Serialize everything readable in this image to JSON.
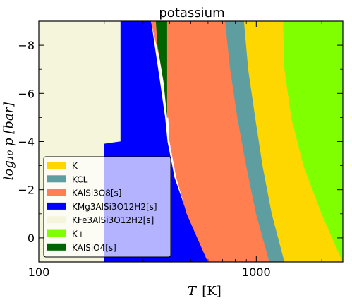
{
  "chart_data": {
    "type": "area",
    "title": "potassium",
    "xlabel": "T [K]",
    "ylabel": "log10 p [bar]",
    "x_scale": "log",
    "xlim": [
      100,
      2500
    ],
    "ylim": [
      -9,
      1
    ],
    "y_inverted": true,
    "x_ticks": [
      100,
      1000
    ],
    "x_tick_labels": [
      "100",
      "1000"
    ],
    "y_ticks": [
      -8,
      -6,
      -4,
      -2,
      0
    ],
    "y_tick_labels": [
      "−8",
      "−6",
      "−4",
      "−2",
      "0"
    ],
    "legend": {
      "position": "lower-left",
      "entries": [
        {
          "label": "K",
          "color": "#FFD700"
        },
        {
          "label": "KCL",
          "color": "#5F9EA0"
        },
        {
          "label": "KAlSi3O8[s]",
          "color": "#FF7F50"
        },
        {
          "label": "KMg3AlSi3O12H2[s]",
          "color": "#0000FF"
        },
        {
          "label": "KFe3AlSi3O12H2[s]",
          "color": "#F5F5DC"
        },
        {
          "label": "K+",
          "color": "#7FFF00"
        },
        {
          "label": "KAlSiO4[s]",
          "color": "#006400"
        }
      ]
    },
    "regions": [
      {
        "name": "KFe3AlSi3O12H2[s]",
        "color": "#F5F5DC",
        "points": [
          [
            100,
            -9
          ],
          [
            238,
            -9
          ],
          [
            238,
            -4
          ],
          [
            200,
            -3.9
          ],
          [
            200,
            1
          ],
          [
            100,
            1
          ]
        ]
      },
      {
        "name": "KMg3AlSi3O12H2[s]",
        "color": "#0000FF",
        "points": [
          [
            238,
            -9
          ],
          [
            328,
            -9
          ],
          [
            340,
            -8
          ],
          [
            360,
            -6.5
          ],
          [
            380,
            -5
          ],
          [
            390,
            -4
          ],
          [
            420,
            -2.5
          ],
          [
            480,
            -1
          ],
          [
            600,
            1
          ],
          [
            200,
            1
          ],
          [
            200,
            -3.9
          ],
          [
            238,
            -4
          ]
        ]
      },
      {
        "name": "KAlSi3O8[s]",
        "color": "#FF7F50",
        "points": [
          [
            328,
            -9
          ],
          [
            346,
            -9
          ],
          [
            352,
            -8
          ],
          [
            375,
            -6.5
          ],
          [
            395,
            -5
          ],
          [
            400,
            -4
          ],
          [
            430,
            -2.5
          ],
          [
            480,
            -1
          ],
          [
            600,
            1
          ]
        ]
      },
      {
        "name": "KAlSiO4[s]",
        "color": "#006400",
        "points": [
          [
            346,
            -9
          ],
          [
            390,
            -9
          ],
          [
            390,
            -5
          ],
          [
            375,
            -6.5
          ],
          [
            352,
            -8
          ]
        ]
      },
      {
        "name": "KAlSi3O8[s]",
        "color": "#FF7F50",
        "points": [
          [
            390,
            -9
          ],
          [
            720,
            -9
          ],
          [
            760,
            -7
          ],
          [
            820,
            -5
          ],
          [
            900,
            -3
          ],
          [
            1000,
            -1
          ],
          [
            1150,
            1
          ],
          [
            600,
            1
          ],
          [
            480,
            -1
          ],
          [
            430,
            -2.5
          ],
          [
            400,
            -4
          ],
          [
            395,
            -5
          ],
          [
            390,
            -5
          ]
        ]
      },
      {
        "name": "KCL",
        "color": "#5F9EA0",
        "points": [
          [
            720,
            -9
          ],
          [
            880,
            -9
          ],
          [
            920,
            -7
          ],
          [
            990,
            -5
          ],
          [
            1070,
            -3
          ],
          [
            1180,
            -1
          ],
          [
            1350,
            1
          ],
          [
            1150,
            1
          ],
          [
            1000,
            -1
          ],
          [
            900,
            -3
          ],
          [
            820,
            -5
          ],
          [
            760,
            -7
          ]
        ]
      },
      {
        "name": "K",
        "color": "#FFD700",
        "points": [
          [
            880,
            -9
          ],
          [
            1330,
            -9
          ],
          [
            1350,
            -7
          ],
          [
            1450,
            -5
          ],
          [
            1650,
            -3
          ],
          [
            2000,
            -1
          ],
          [
            2500,
            1
          ],
          [
            1350,
            1
          ],
          [
            1180,
            -1
          ],
          [
            1070,
            -3
          ],
          [
            990,
            -5
          ],
          [
            920,
            -7
          ]
        ]
      },
      {
        "name": "K+",
        "color": "#7FFF00",
        "points": [
          [
            1330,
            -9
          ],
          [
            2500,
            -9
          ],
          [
            2500,
            1
          ],
          [
            2000,
            -1
          ],
          [
            1650,
            -3
          ],
          [
            1450,
            -5
          ],
          [
            1350,
            -7
          ]
        ]
      }
    ]
  }
}
